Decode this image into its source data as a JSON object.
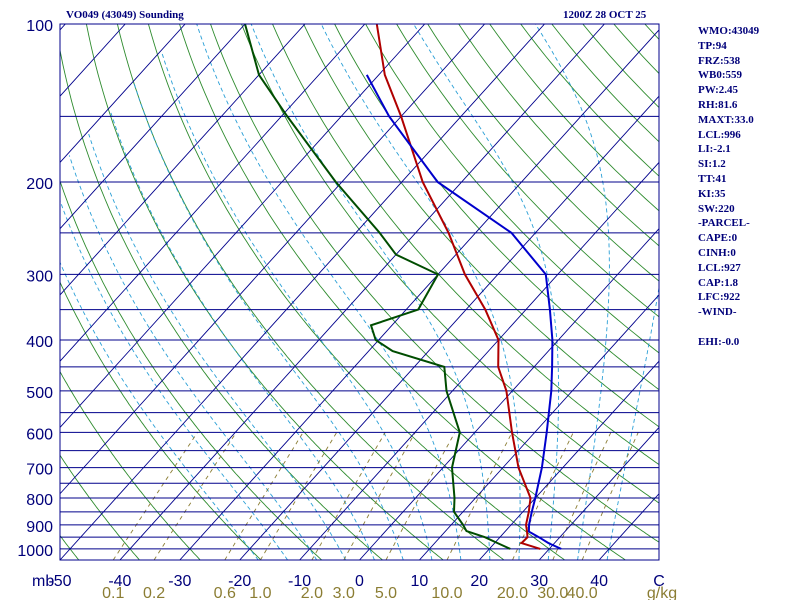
{
  "header": {
    "station": "VO049 (43049) Sounding",
    "time": "1200Z 28 OCT 25"
  },
  "indices": [
    "WMO:43049",
    "TP:94",
    "FRZ:538",
    "WB0:559",
    "PW:2.45",
    "RH:81.6",
    "MAXT:33.0",
    "LCL:996",
    "LI:-2.1",
    "SI:1.2",
    "TT:41",
    "KI:35",
    "SW:220",
    "-PARCEL-",
    "CAPE:0",
    "CINH:0",
    "LCL:927",
    "CAP:1.8",
    "LFC:922",
    "-WIND-",
    "",
    "EHI:-0.0"
  ],
  "colors": {
    "isobar": "#00008b",
    "isotherm": "#00008b",
    "dry_adiabat": "#2e8b2e",
    "moist_adiabat": "#2a9fd6",
    "mixing_ratio": "#8b7d33",
    "temperature": "#b00000",
    "dewpoint": "#004d00",
    "parcel": "#0000cc",
    "label": "#00007a",
    "mixing_label": "#8b7d33"
  },
  "chart_data": {
    "type": "skew-t",
    "xlabel": "",
    "ylabel": "mb",
    "pressure_range": [
      1050,
      100
    ],
    "temperature_range": [
      -50,
      50
    ],
    "pressure_ticks": [
      100,
      200,
      300,
      400,
      500,
      600,
      700,
      800,
      900,
      1000
    ],
    "temperature_ticks": [
      "-50",
      "-40",
      "-30",
      "-20",
      "-10",
      "0",
      "10",
      "20",
      "30",
      "40",
      "C"
    ],
    "mixing_ratio_ticks": [
      "0.1",
      "0.2",
      "0.6",
      "1.0",
      "2.0",
      "3.0",
      "5.0",
      "10.0",
      "20.0",
      "30.0",
      "40.0",
      "g/kg"
    ],
    "mixing_ratio_values": [
      0.1,
      0.2,
      0.6,
      1.0,
      2.0,
      3.0,
      5.0,
      10.0,
      20.0,
      30.0,
      40.0
    ],
    "series": [
      {
        "key": "temperature",
        "points": [
          [
            1000,
            28.5
          ],
          [
            975,
            24.5
          ],
          [
            950,
            24.6
          ],
          [
            925,
            23.6
          ],
          [
            900,
            22.5
          ],
          [
            850,
            21.0
          ],
          [
            800,
            19.2
          ],
          [
            700,
            12.6
          ],
          [
            600,
            6.2
          ],
          [
            500,
            -1.0
          ],
          [
            450,
            -6.0
          ],
          [
            400,
            -10.0
          ],
          [
            350,
            -16.8
          ],
          [
            300,
            -25.5
          ],
          [
            250,
            -34.5
          ],
          [
            200,
            -46.5
          ],
          [
            150,
            -60.0
          ],
          [
            125,
            -69.0
          ],
          [
            100,
            -78.0
          ]
        ]
      },
      {
        "key": "dewpoint",
        "points": [
          [
            1000,
            23.5
          ],
          [
            975,
            20.5
          ],
          [
            950,
            17.5
          ],
          [
            925,
            13.5
          ],
          [
            900,
            12.0
          ],
          [
            850,
            8.5
          ],
          [
            800,
            6.5
          ],
          [
            700,
            1.5
          ],
          [
            600,
            -2.5
          ],
          [
            500,
            -11.0
          ],
          [
            450,
            -15.0
          ],
          [
            420,
            -26.0
          ],
          [
            400,
            -30.5
          ],
          [
            375,
            -33.5
          ],
          [
            350,
            -28.0
          ],
          [
            300,
            -30.0
          ],
          [
            275,
            -40.0
          ],
          [
            250,
            -46.0
          ],
          [
            200,
            -61.0
          ],
          [
            150,
            -79.0
          ],
          [
            125,
            -90.0
          ],
          [
            100,
            -100.0
          ]
        ]
      },
      {
        "key": "parcel",
        "points": [
          [
            1000,
            32.0
          ],
          [
            975,
            29.0
          ],
          [
            950,
            26.5
          ],
          [
            927,
            24.0
          ],
          [
            900,
            23.0
          ],
          [
            850,
            21.5
          ],
          [
            800,
            20.0
          ],
          [
            700,
            16.5
          ],
          [
            600,
            12.0
          ],
          [
            500,
            6.5
          ],
          [
            450,
            3.0
          ],
          [
            400,
            -1.0
          ],
          [
            350,
            -6.0
          ],
          [
            300,
            -12.0
          ],
          [
            250,
            -24.0
          ],
          [
            200,
            -44.0
          ],
          [
            150,
            -62.0
          ],
          [
            125,
            -72.0
          ]
        ]
      }
    ]
  }
}
